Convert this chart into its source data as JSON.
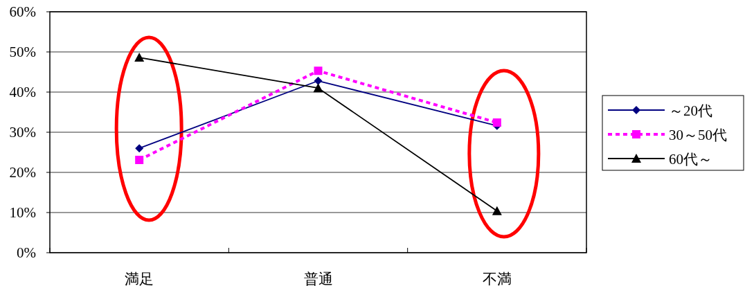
{
  "chart_data": {
    "type": "line",
    "categories": [
      "満足",
      "普通",
      "不満"
    ],
    "series": [
      {
        "name": "～20代",
        "color": "#000080",
        "values": [
          26.0,
          42.8,
          31.6
        ],
        "marker": "diamond",
        "line_style": "solid"
      },
      {
        "name": "30～50代",
        "color": "#ff00ff",
        "values": [
          23.1,
          45.3,
          32.4
        ],
        "marker": "square",
        "line_style": "dotted"
      },
      {
        "name": "60代～",
        "color": "#000000",
        "values": [
          48.6,
          41.0,
          10.4
        ],
        "marker": "triangle",
        "line_style": "solid"
      }
    ],
    "ylim": [
      0,
      60
    ],
    "yticks": [
      {
        "value": 0,
        "label": "0%"
      },
      {
        "value": 10,
        "label": "10%"
      },
      {
        "value": 20,
        "label": "20%"
      },
      {
        "value": 30,
        "label": "30%"
      },
      {
        "value": 40,
        "label": "40%"
      },
      {
        "value": 50,
        "label": "50%"
      },
      {
        "value": 60,
        "label": "60%"
      }
    ],
    "grid": "y",
    "legend": "right"
  }
}
